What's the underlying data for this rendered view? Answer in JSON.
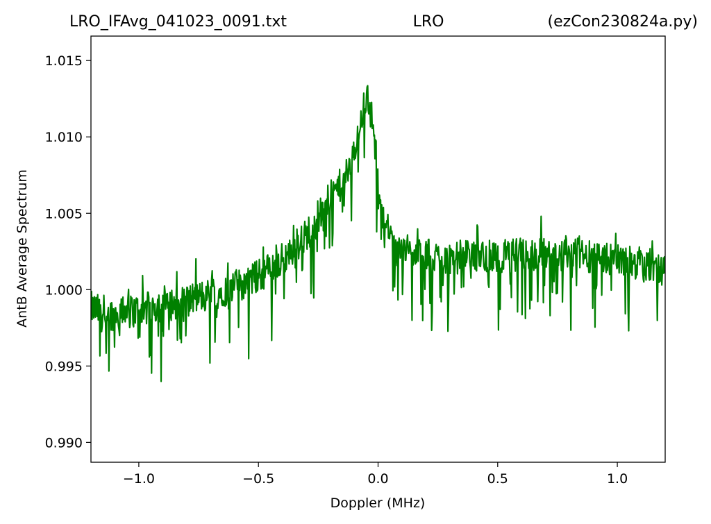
{
  "title": {
    "left": "LRO_IFAvg_041023_0091.txt",
    "center": "LRO",
    "right": "(ezCon230824a.py)"
  },
  "chart_data": {
    "type": "line",
    "xlabel": "Doppler (MHz)",
    "ylabel": "AntB Average Spectrum",
    "xlim": [
      -1.2,
      1.2
    ],
    "ylim": [
      0.9887,
      1.0166
    ],
    "xticks": [
      -1.0,
      -0.5,
      0.0,
      0.5,
      1.0
    ],
    "xtick_labels": [
      "−1.0",
      "−0.5",
      "0.0",
      "0.5",
      "1.0"
    ],
    "yticks": [
      0.99,
      0.995,
      1.0,
      1.005,
      1.01,
      1.015
    ],
    "ytick_labels": [
      "0.990",
      "0.995",
      "1.000",
      "1.005",
      "1.010",
      "1.015"
    ],
    "grid": false,
    "series": [
      {
        "color": "#008000",
        "x": [
          -1.2,
          -1.15,
          -1.1,
          -1.05,
          -1.0,
          -0.95,
          -0.9,
          -0.85,
          -0.8,
          -0.75,
          -0.7,
          -0.65,
          -0.6,
          -0.55,
          -0.5,
          -0.45,
          -0.4,
          -0.35,
          -0.3,
          -0.25,
          -0.2,
          -0.18,
          -0.16,
          -0.14,
          -0.12,
          -0.1,
          -0.09,
          -0.08,
          -0.07,
          -0.06,
          -0.05,
          -0.04,
          -0.03,
          -0.02,
          -0.01,
          0.0,
          0.02,
          0.05,
          0.1,
          0.15,
          0.2,
          0.3,
          0.4,
          0.5,
          0.6,
          0.7,
          0.8,
          0.9,
          1.0,
          1.1,
          1.2
        ],
        "y": [
          0.9988,
          0.9985,
          0.9984,
          0.9985,
          0.9987,
          0.9988,
          0.999,
          0.9991,
          0.9993,
          0.9995,
          0.9997,
          0.9999,
          1.0002,
          1.0005,
          1.0009,
          1.0014,
          1.002,
          1.0027,
          1.0036,
          1.0048,
          1.006,
          1.0064,
          1.0068,
          1.0072,
          1.0078,
          1.0088,
          1.0096,
          1.0105,
          1.0113,
          1.012,
          1.0128,
          1.0124,
          1.0116,
          1.0105,
          1.009,
          1.0075,
          1.005,
          1.0035,
          1.0027,
          1.0023,
          1.0021,
          1.0021,
          1.0022,
          1.0022,
          1.0023,
          1.0023,
          1.0023,
          1.0022,
          1.002,
          1.0015,
          1.0012
        ]
      }
    ]
  }
}
